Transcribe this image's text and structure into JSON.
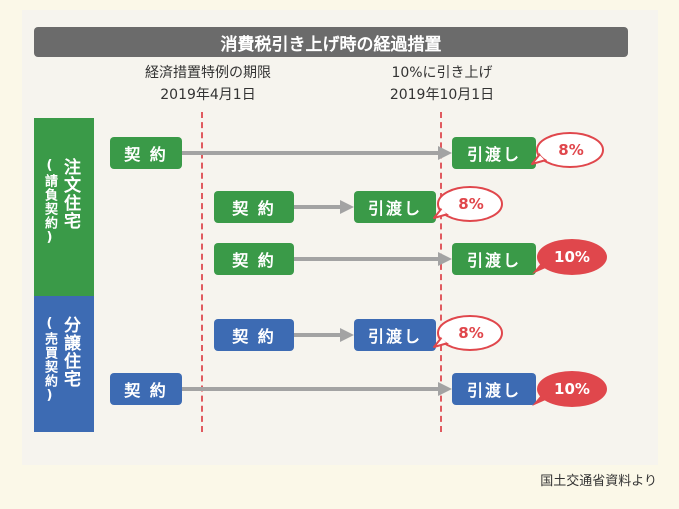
{
  "title": "消費税引き上げ時の経過措置",
  "deadlines": [
    {
      "line1": "経済措置特例の期限",
      "line2": "2019年4月1日"
    },
    {
      "line1": "10%に引き上げ",
      "line2": "2019年10月1日"
    }
  ],
  "groups": [
    {
      "main": "注文住宅",
      "sub": "(請負契約)",
      "color": "#3a9a48"
    },
    {
      "main": "分譲住宅",
      "sub": "(売買契約)",
      "color": "#3d6bb3"
    }
  ],
  "labels": {
    "contract": "契 約",
    "handover": "引渡し"
  },
  "rates": {
    "r1": "8%",
    "r2": "8%",
    "r3": "10%",
    "r4": "8%",
    "r5": "10%"
  },
  "colors": {
    "line": "#e05a5f",
    "arrow": "#a3a3a3",
    "bubble_red": "#e0474c",
    "green": "#3a9a48",
    "blue": "#3d6bb3"
  },
  "credit": "国土交通省資料より"
}
